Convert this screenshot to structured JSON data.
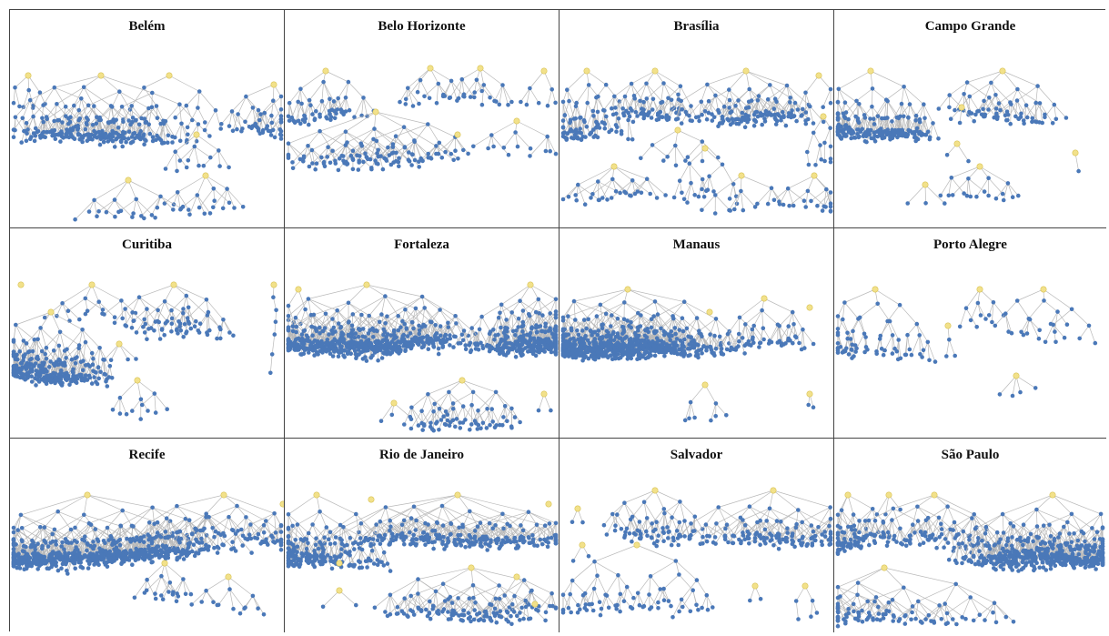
{
  "colors": {
    "node": "#4a78b8",
    "root": "#f2e18a",
    "edge": "#b9b9b9",
    "border": "#444444"
  },
  "cities": [
    {
      "name": "Belém"
    },
    {
      "name": "Belo Horizonte"
    },
    {
      "name": "Brasília"
    },
    {
      "name": "Campo Grande"
    },
    {
      "name": "Curitiba"
    },
    {
      "name": "Fortaleza"
    },
    {
      "name": "Manaus"
    },
    {
      "name": "Porto Alegre"
    },
    {
      "name": "Recife"
    },
    {
      "name": "Rio de Janeiro"
    },
    {
      "name": "Salvador"
    },
    {
      "name": "São Paulo"
    }
  ]
}
